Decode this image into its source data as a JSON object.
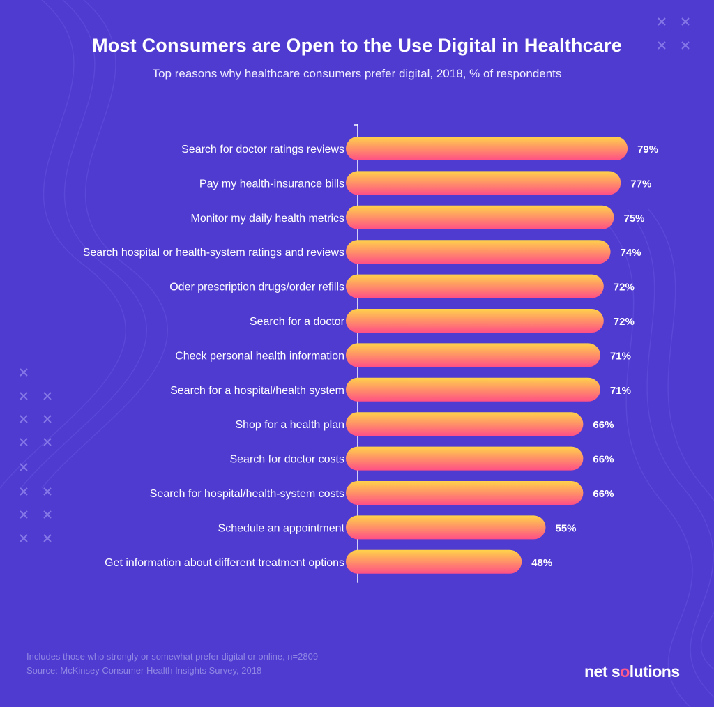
{
  "header": {
    "title": "Most Consumers are Open to the Use Digital in Healthcare",
    "subtitle": "Top reasons why healthcare consumers prefer digital, 2018, % of respondents"
  },
  "chart_data": {
    "type": "bar",
    "orientation": "horizontal",
    "categories": [
      "Search for doctor ratings reviews",
      "Pay my health-insurance bills",
      "Monitor my daily health metrics",
      "Search hospital or health-system ratings and reviews",
      "Oder prescription drugs/order refills",
      "Search for a doctor",
      "Check personal health information",
      "Search for a hospital/health system",
      "Shop for a health plan",
      "Search for doctor costs",
      "Search for hospital/health-system costs",
      "Schedule an appointment",
      "Get information about different treatment options"
    ],
    "values": [
      79,
      77,
      75,
      74,
      72,
      72,
      71,
      71,
      66,
      66,
      66,
      55,
      48
    ],
    "data_labels": [
      "79%",
      "77%",
      "75%",
      "74%",
      "72%",
      "72%",
      "71%",
      "71%",
      "66%",
      "66%",
      "66%",
      "55%",
      "48%"
    ],
    "xlim": [
      0,
      100
    ],
    "grid": false,
    "legend": "none",
    "colors": {
      "background": "#4f3bd0",
      "bar_start": "#ffd24a",
      "bar_end": "#ff4f86",
      "axis": "#ffffff"
    }
  },
  "footer": {
    "note": "Includes those who strongly or somewhat prefer digital or online, n=2809",
    "source": "Source: McKinsey Consumer Health Insights Survey, 2018",
    "logo_part1": "net s",
    "logo_dot": "o",
    "logo_part2": "lutions"
  }
}
